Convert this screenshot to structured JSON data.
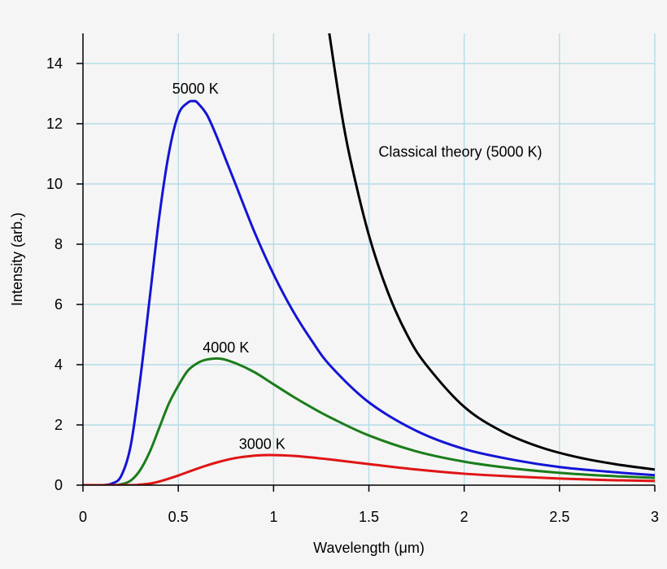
{
  "chart_data": {
    "type": "line",
    "title": "",
    "xlabel": "Wavelength (μm)",
    "ylabel": "Intensity (arb.)",
    "xlim": [
      0,
      3
    ],
    "ylim": [
      0,
      15
    ],
    "grid": true,
    "x_ticks": [
      0,
      0.5,
      1,
      1.5,
      2,
      2.5,
      3
    ],
    "x_tick_labels": [
      "0",
      "0.5",
      "1",
      "1.5",
      "2",
      "2.5",
      "3"
    ],
    "y_ticks": [
      0,
      2,
      4,
      6,
      8,
      10,
      12,
      14
    ],
    "y_tick_labels": [
      "0",
      "2",
      "4",
      "6",
      "8",
      "10",
      "12",
      "14"
    ],
    "series": [
      {
        "name": "5000 K",
        "color": "#1414d6",
        "x": [
          0.0,
          0.1,
          0.15,
          0.2,
          0.25,
          0.3,
          0.35,
          0.4,
          0.45,
          0.5,
          0.55,
          0.58,
          0.6,
          0.65,
          0.7,
          0.75,
          0.8,
          0.9,
          1.0,
          1.1,
          1.2,
          1.3,
          1.5,
          1.75,
          2.0,
          2.25,
          2.5,
          2.75,
          3.0
        ],
        "values": [
          0,
          0,
          0.05,
          0.3,
          1.3,
          3.5,
          6.2,
          8.9,
          11.0,
          12.3,
          12.7,
          12.75,
          12.7,
          12.3,
          11.6,
          10.8,
          10.0,
          8.4,
          7.0,
          5.8,
          4.8,
          3.95,
          2.75,
          1.8,
          1.2,
          0.85,
          0.6,
          0.45,
          0.33
        ]
      },
      {
        "name": "4000 K",
        "color": "#1a7d1a",
        "x": [
          0.0,
          0.15,
          0.2,
          0.25,
          0.3,
          0.35,
          0.4,
          0.45,
          0.5,
          0.55,
          0.6,
          0.65,
          0.72,
          0.8,
          0.9,
          1.0,
          1.1,
          1.2,
          1.3,
          1.5,
          1.75,
          2.0,
          2.25,
          2.5,
          2.75,
          3.0
        ],
        "values": [
          0,
          0,
          0.03,
          0.15,
          0.5,
          1.1,
          1.9,
          2.7,
          3.3,
          3.8,
          4.05,
          4.17,
          4.2,
          4.05,
          3.75,
          3.35,
          2.95,
          2.58,
          2.24,
          1.65,
          1.12,
          0.78,
          0.56,
          0.41,
          0.31,
          0.24
        ]
      },
      {
        "name": "3000 K",
        "color": "#e01414",
        "x": [
          0.0,
          0.25,
          0.3,
          0.35,
          0.4,
          0.5,
          0.6,
          0.7,
          0.8,
          0.9,
          0.97,
          1.05,
          1.15,
          1.3,
          1.5,
          1.75,
          2.0,
          2.25,
          2.5,
          2.75,
          3.0
        ],
        "values": [
          0,
          0,
          0.02,
          0.05,
          0.12,
          0.32,
          0.55,
          0.75,
          0.9,
          0.98,
          1.0,
          0.99,
          0.95,
          0.85,
          0.7,
          0.52,
          0.38,
          0.29,
          0.22,
          0.17,
          0.14
        ]
      },
      {
        "name": "Classical theory (5000 K)",
        "color": "#000000",
        "x": [
          1.29,
          1.35,
          1.4,
          1.5,
          1.6,
          1.7,
          1.8,
          2.0,
          2.2,
          2.4,
          2.6,
          2.8,
          3.0
        ],
        "values": [
          15.1,
          12.6,
          10.9,
          8.3,
          6.4,
          5.0,
          4.0,
          2.6,
          1.78,
          1.26,
          0.92,
          0.69,
          0.52
        ]
      }
    ],
    "annotations": [
      {
        "text": "5000 K",
        "x": 0.59,
        "y": 13.0
      },
      {
        "text": "4000 K",
        "x": 0.75,
        "y": 4.4
      },
      {
        "text": "3000 K",
        "x": 0.94,
        "y": 1.2
      },
      {
        "text": "Classical theory (5000 K)",
        "x": 1.98,
        "y": 10.9
      }
    ]
  }
}
